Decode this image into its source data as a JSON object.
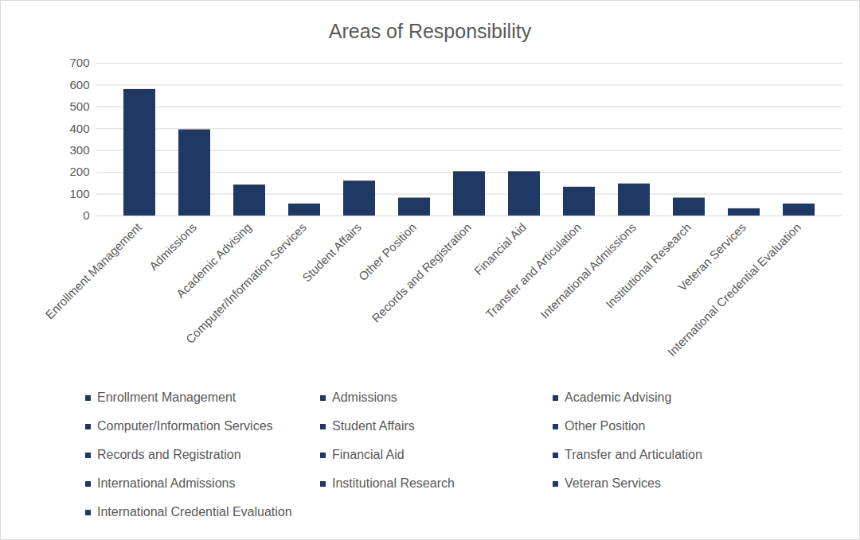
{
  "chart_data": {
    "type": "bar",
    "title": "Areas of Responsibility",
    "categories": [
      "Enrollment Management",
      "Admissions",
      "Academic Advising",
      "Computer/Information Services",
      "Student Affairs",
      "Other Position",
      "Records and Registration",
      "Financial Aid",
      "Transfer and Articulation",
      "International Admissions",
      "Institutional Research",
      "Veteran Services",
      "International Credential Evaluation"
    ],
    "values": [
      580,
      395,
      142,
      55,
      160,
      82,
      203,
      203,
      132,
      147,
      82,
      33,
      55
    ],
    "color": "#1f3864",
    "ylim": [
      0,
      700
    ],
    "yticks": [
      0,
      100,
      200,
      300,
      400,
      500,
      600,
      700
    ],
    "grid": true,
    "legend": "bottom"
  }
}
